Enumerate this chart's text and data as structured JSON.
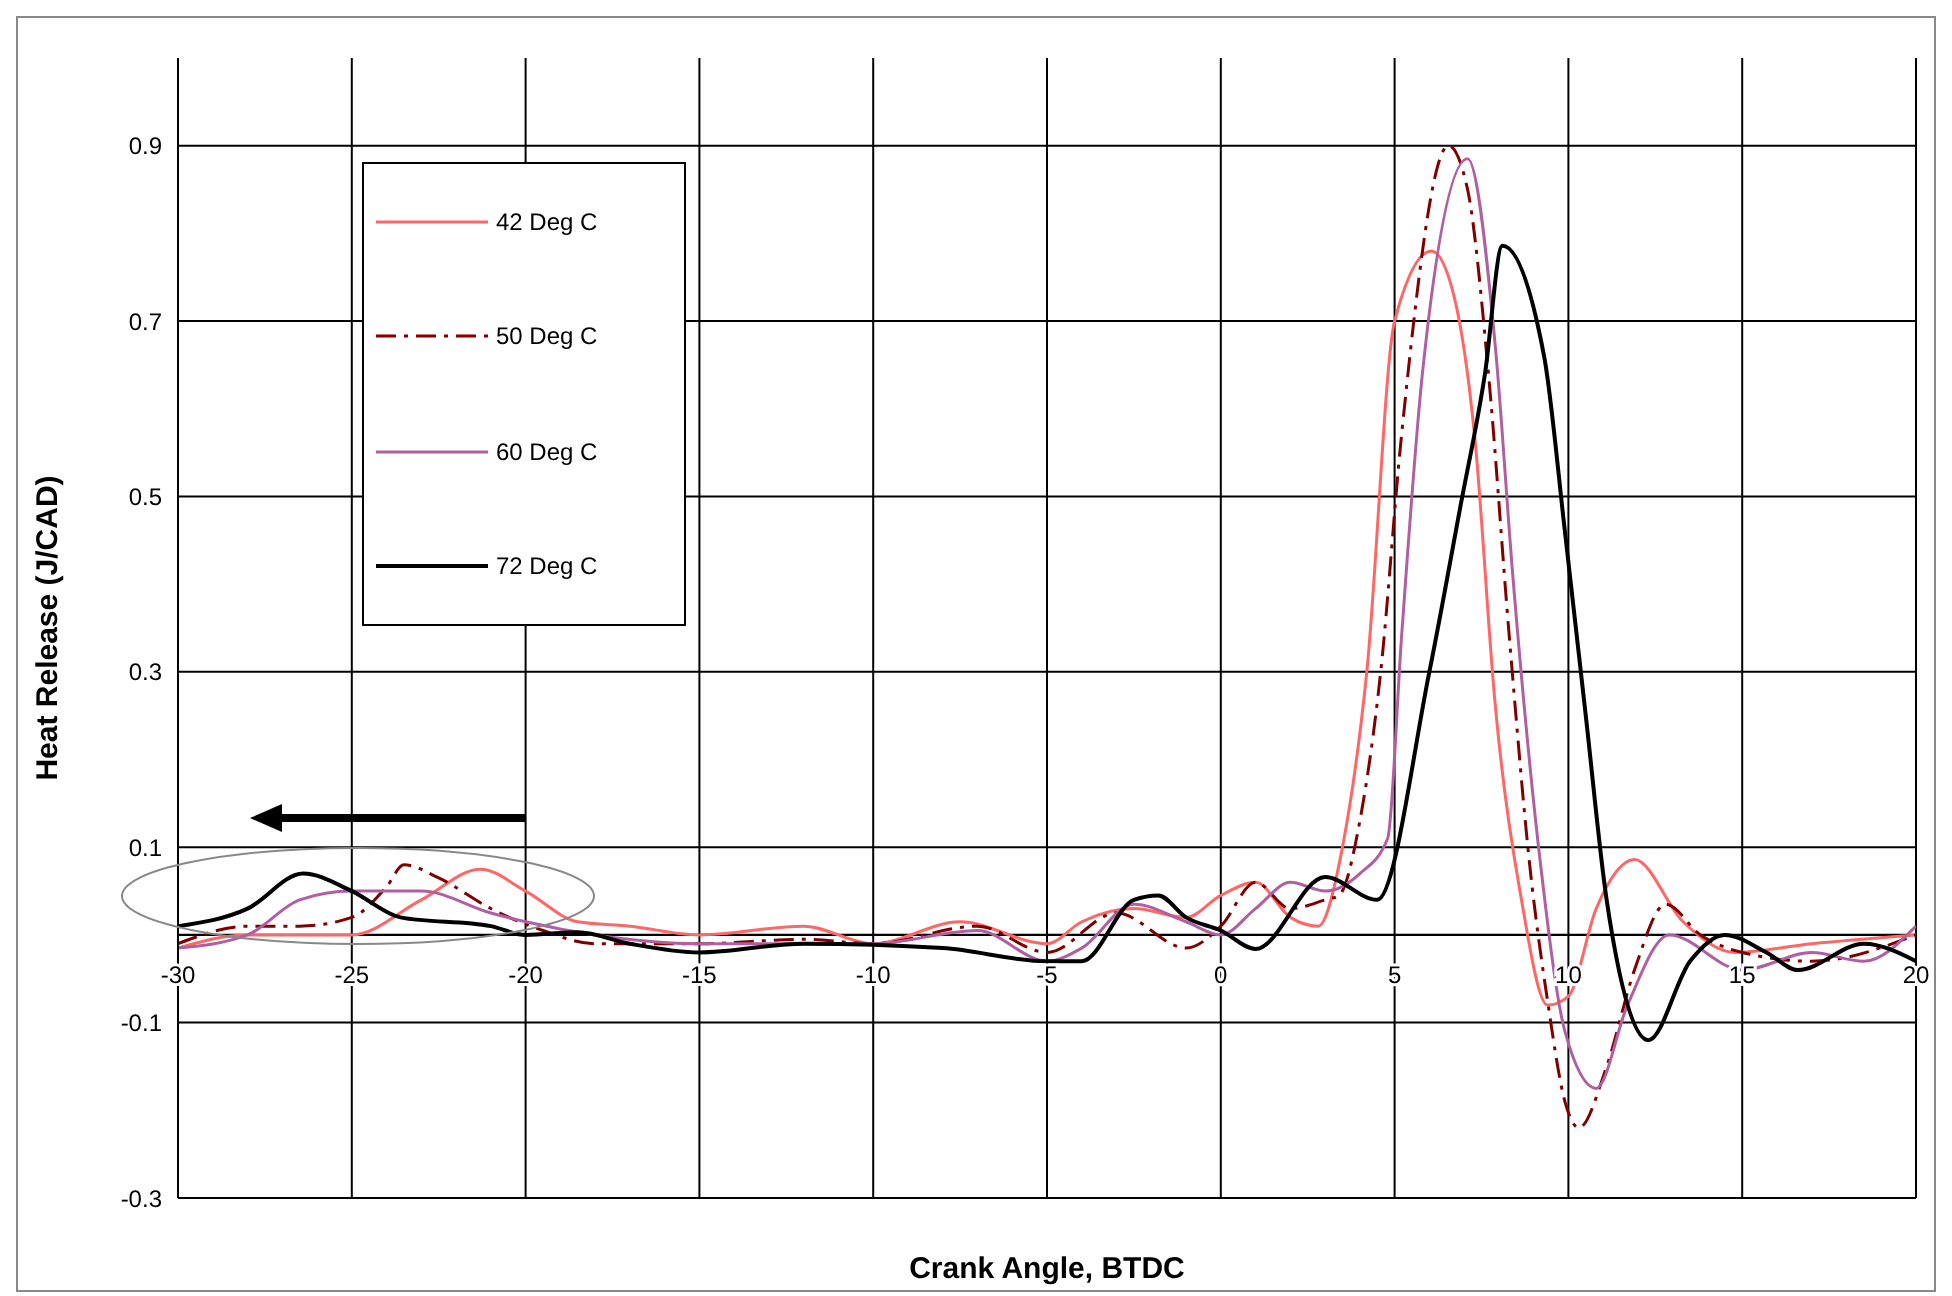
{
  "chart_data": {
    "type": "line",
    "xlabel": "Crank Angle, BTDC",
    "ylabel": "Heat Release (J/CAD)",
    "xlim": [
      -30,
      20
    ],
    "xticks": [
      -30,
      -25,
      -20,
      -15,
      -10,
      -5,
      0,
      5,
      10,
      15,
      20
    ],
    "ylim": [
      -0.3,
      1.0
    ],
    "yticks": [
      -0.3,
      -0.1,
      0.1,
      0.3,
      0.5,
      0.7,
      0.9
    ],
    "grid": true,
    "legend": "top left",
    "series": [
      {
        "name": "42 Deg C",
        "color": "#ff6666",
        "line_style": "solid",
        "x": [
          -30,
          -28,
          -25,
          -23,
          -21.3,
          -20,
          -18.5,
          -17,
          -15,
          -12,
          -10,
          -7.5,
          -5,
          -4,
          -2.5,
          -1,
          0,
          1,
          2,
          2.8,
          3.5,
          4.2,
          5,
          6.06,
          6.7,
          7.3,
          7.9,
          8.65,
          9.4,
          10,
          10.8,
          11.9,
          13.3,
          14.8,
          17,
          20
        ],
        "values": [
          -0.015,
          0,
          0,
          0.04,
          0.075,
          0.05,
          0.015,
          0.01,
          0,
          0.01,
          -0.01,
          0.015,
          -0.01,
          0.015,
          0.03,
          0.02,
          0.045,
          0.06,
          0.02,
          0.01,
          0.1,
          0.3,
          0.7,
          0.78,
          0.73,
          0.57,
          0.26,
          0.04,
          -0.08,
          -0.07,
          0.03,
          0.086,
          0.015,
          -0.02,
          -0.01,
          0
        ]
      },
      {
        "name": "50 Deg C",
        "color": "#800000",
        "line_style": "dashed",
        "x": [
          -30,
          -28,
          -26.5,
          -25,
          -24,
          -23.5,
          -22.5,
          -21,
          -19.5,
          -18,
          -15,
          -12,
          -10,
          -7,
          -5,
          -3,
          -1,
          0,
          1,
          2,
          3,
          3.4,
          4,
          4.6,
          5.2,
          6.55,
          7.1,
          7.7,
          8.3,
          8.9,
          9.4,
          9.9,
          10.3,
          11.1,
          11.9,
          12.8,
          13.8,
          15,
          17,
          20
        ],
        "values": [
          -0.01,
          0.01,
          0.01,
          0.02,
          0.055,
          0.08,
          0.065,
          0.03,
          0.005,
          -0.01,
          -0.01,
          -0.005,
          -0.01,
          0.01,
          -0.02,
          0.025,
          -0.015,
          0.01,
          0.06,
          0.03,
          0.04,
          0.045,
          0.13,
          0.3,
          0.57,
          0.9,
          0.85,
          0.64,
          0.34,
          0.075,
          -0.075,
          -0.19,
          -0.22,
          -0.15,
          -0.04,
          0.035,
          0,
          -0.02,
          -0.03,
          0
        ]
      },
      {
        "name": "60 Deg C",
        "color": "#b060a0",
        "line_style": "solid",
        "x": [
          -30,
          -28,
          -26.5,
          -25,
          -23,
          -21,
          -20,
          -18,
          -15,
          -12,
          -10,
          -7,
          -5,
          -4,
          -2.5,
          -1,
          0,
          1,
          2,
          3,
          4,
          4.8,
          5.2,
          5.8,
          7.1,
          7.9,
          8.4,
          9.2,
          9.9,
          10.8,
          11.7,
          12.9,
          15,
          17,
          18.5,
          20
        ],
        "values": [
          -0.015,
          0,
          0.04,
          0.05,
          0.05,
          0.025,
          0.015,
          0,
          -0.01,
          -0.01,
          -0.01,
          0.005,
          -0.03,
          -0.015,
          0.035,
          0.015,
          0,
          0.03,
          0.06,
          0.05,
          0.07,
          0.11,
          0.34,
          0.64,
          0.885,
          0.67,
          0.41,
          0.08,
          -0.11,
          -0.175,
          -0.08,
          0,
          -0.04,
          -0.02,
          -0.03,
          0.01
        ]
      },
      {
        "name": "72 Deg C",
        "color": "#000000",
        "line_style": "solid",
        "x": [
          -30,
          -28,
          -26.4,
          -25,
          -23.6,
          -21,
          -20,
          -18.5,
          -17,
          -15,
          -12,
          -8,
          -5,
          -4,
          -2.5,
          -1.8,
          -1,
          0,
          1,
          3,
          4.5,
          6,
          6.9,
          7.6,
          8.1,
          9.3,
          9.9,
          10.5,
          11.1,
          12.3,
          13.5,
          14.5,
          15.7,
          16.6,
          18.5,
          20
        ],
        "values": [
          0.01,
          0.03,
          0.07,
          0.05,
          0.02,
          0.01,
          0,
          0.003,
          -0.01,
          -0.02,
          -0.01,
          -0.015,
          -0.03,
          -0.03,
          0.04,
          0.045,
          0.02,
          0.005,
          -0.016,
          0.066,
          0.04,
          0.3,
          0.49,
          0.64,
          0.786,
          0.66,
          0.46,
          0.25,
          0.04,
          -0.12,
          -0.03,
          0,
          -0.02,
          -0.04,
          -0.01,
          -0.03
        ]
      }
    ]
  }
}
